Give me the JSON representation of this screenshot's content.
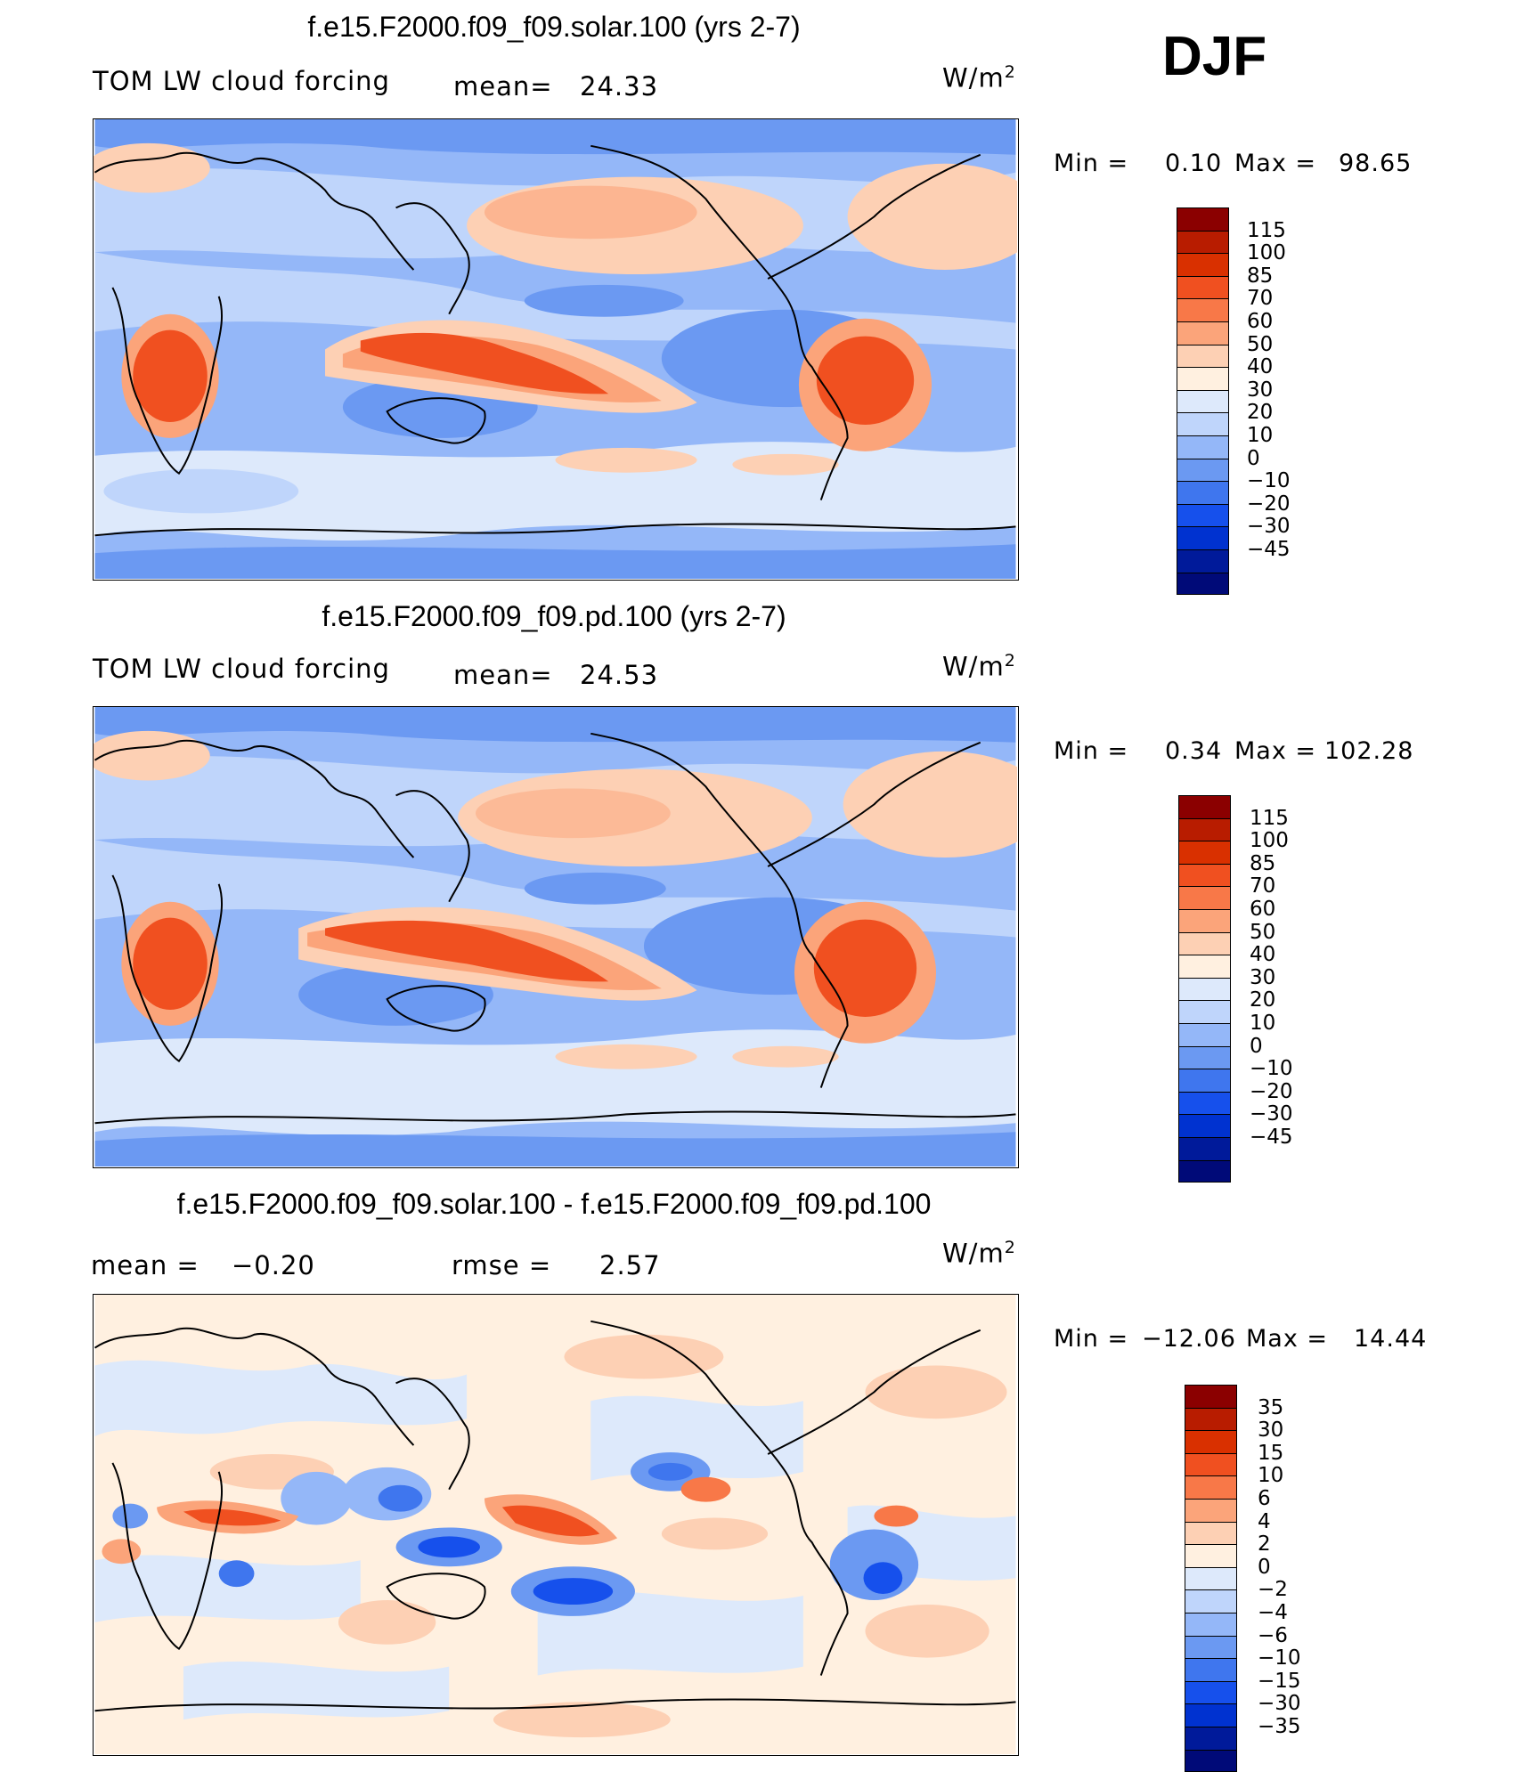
{
  "season": "DJF",
  "panels": [
    {
      "id": "solar",
      "title": "f.e15.F2000.f09_f09.solar.100 (yrs 2-7)",
      "left_label": "TOM LW cloud forcing",
      "mid_label": "mean=",
      "mid_value": "24.33",
      "units": "W/m",
      "units_sup": "2",
      "min_label": "Min  =",
      "min_value": "0.10",
      "max_label": "Max  =",
      "max_value": "98.65",
      "colorbar": {
        "labels": [
          "115",
          "100",
          "85",
          "70",
          "60",
          "50",
          "40",
          "30",
          "20",
          "10",
          "0",
          "−10",
          "−20",
          "−30",
          "−45"
        ],
        "colors": [
          "#8b0000",
          "#b81c00",
          "#d93000",
          "#f05020",
          "#f87848",
          "#fba47a",
          "#fdd0b4",
          "#fff0e0",
          "#dde9fb",
          "#bfd5fb",
          "#94b7f8",
          "#6b99f2",
          "#3f76ee",
          "#1650ec",
          "#0032d0",
          "#001a9a",
          "#000a78"
        ]
      }
    },
    {
      "id": "pd",
      "title": "f.e15.F2000.f09_f09.pd.100 (yrs 2-7)",
      "left_label": "TOM LW cloud forcing",
      "mid_label": "mean=",
      "mid_value": "24.53",
      "units": "W/m",
      "units_sup": "2",
      "min_label": "Min  =",
      "min_value": "0.34",
      "max_label": "Max  =",
      "max_value": "102.28",
      "colorbar": {
        "labels": [
          "115",
          "100",
          "85",
          "70",
          "60",
          "50",
          "40",
          "30",
          "20",
          "10",
          "0",
          "−10",
          "−20",
          "−30",
          "−45"
        ],
        "colors": [
          "#8b0000",
          "#b81c00",
          "#d93000",
          "#f05020",
          "#f87848",
          "#fba47a",
          "#fdd0b4",
          "#fff0e0",
          "#dde9fb",
          "#bfd5fb",
          "#94b7f8",
          "#6b99f2",
          "#3f76ee",
          "#1650ec",
          "#0032d0",
          "#001a9a",
          "#000a78"
        ]
      }
    },
    {
      "id": "diff",
      "title": "f.e15.F2000.f09_f09.solar.100 - f.e15.F2000.f09_f09.pd.100",
      "left_label": "mean  =",
      "left_value": "−0.20",
      "mid_label": "rmse  =",
      "mid_value": "2.57",
      "units": "W/m",
      "units_sup": "2",
      "min_label": "Min  =",
      "min_value": "−12.06",
      "max_label": "Max  =",
      "max_value": "14.44",
      "colorbar": {
        "labels": [
          "35",
          "30",
          "15",
          "10",
          "6",
          "4",
          "2",
          "0",
          "−2",
          "−4",
          "−6",
          "−10",
          "−15",
          "−30",
          "−35"
        ],
        "colors": [
          "#8b0000",
          "#b81c00",
          "#d93000",
          "#f05020",
          "#f87848",
          "#fba47a",
          "#fdd0b4",
          "#fff0e0",
          "#dde9fb",
          "#bfd5fb",
          "#94b7f8",
          "#6b99f2",
          "#3f76ee",
          "#1650ec",
          "#0032d0",
          "#001a9a",
          "#000a78"
        ]
      }
    }
  ]
}
